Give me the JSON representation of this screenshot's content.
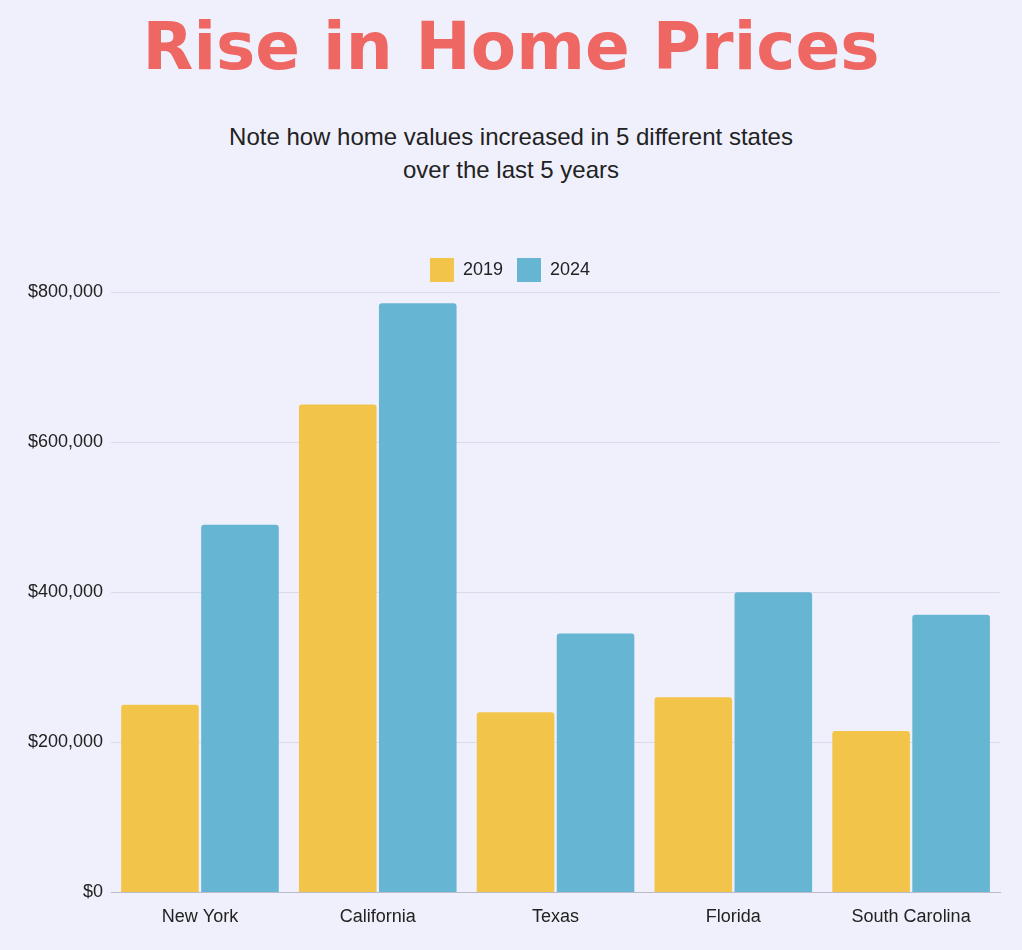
{
  "chart_data": {
    "type": "bar",
    "title": "Rise in Home Prices",
    "subtitle": "Note how home values increased in 5 different states over the last 5 years",
    "categories": [
      "New York",
      "California",
      "Texas",
      "Florida",
      "South Carolina"
    ],
    "series": [
      {
        "name": "2019",
        "color": "#F2C54A",
        "values": [
          250000,
          650000,
          240000,
          260000,
          215000
        ]
      },
      {
        "name": "2024",
        "color": "#66B5D3",
        "values": [
          490000,
          785000,
          345000,
          400000,
          370000
        ]
      }
    ],
    "ylim": [
      0,
      800000
    ],
    "yticks": [
      {
        "value": 0,
        "label": "$0"
      },
      {
        "value": 200000,
        "label": "$200,000"
      },
      {
        "value": 400000,
        "label": "$400,000"
      },
      {
        "value": 600000,
        "label": "$600,000"
      },
      {
        "value": 800000,
        "label": "$800,000"
      }
    ],
    "grid": true,
    "legend": "top"
  }
}
